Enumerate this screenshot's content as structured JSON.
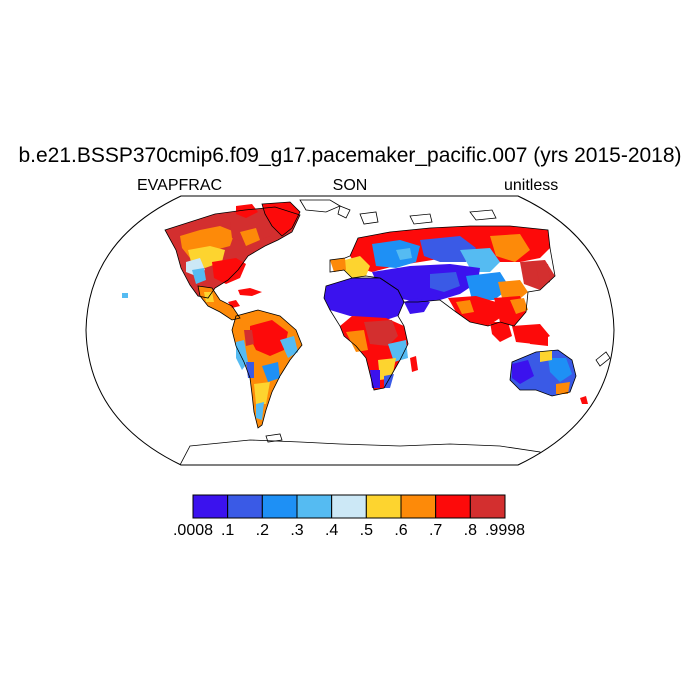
{
  "figure": {
    "title": "b.e21.BSSP370cmip6.f09_g17.pacemaker_pacific.007 (yrs 2015-2018)",
    "left_label": "EVAPFRAC",
    "center_label": "SON",
    "right_label": "unitless",
    "projection": "robinson"
  },
  "colorbar": {
    "colors": [
      "#3b12ee",
      "#3a5ae6",
      "#1e90f5",
      "#55bbf2",
      "#cce8f6",
      "#fdd42f",
      "#fd8a09",
      "#fd0a0a",
      "#d32f2f"
    ],
    "labels": [
      ".0008",
      ".1",
      ".2",
      ".3",
      ".4",
      ".5",
      ".6",
      ".7",
      ".8",
      ".9998"
    ]
  }
}
